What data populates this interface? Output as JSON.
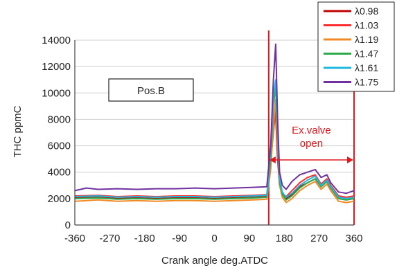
{
  "chart_data": {
    "type": "line",
    "title": "",
    "xlabel": "Crank angle deg.ATDC",
    "ylabel": "THC ppmC",
    "xlim": [
      -360,
      360
    ],
    "ylim": [
      0,
      14000
    ],
    "x_ticks": [
      -360,
      -270,
      -180,
      -90,
      0,
      90,
      180,
      270,
      360
    ],
    "y_ticks": [
      0,
      2000,
      4000,
      6000,
      8000,
      10000,
      12000,
      14000
    ],
    "grid": "horizontal",
    "legend_position": "top-right",
    "annotations": {
      "box_label": "Pos.B",
      "exvalve_label_line1": "Ex.valve",
      "exvalve_label_line2": "open",
      "exvalve_open_start": 140,
      "exvalve_open_end": 360,
      "annotation_color": "#e0191f"
    },
    "series": [
      {
        "name": "λ0.98",
        "color": "#c00000",
        "x": [
          -360,
          -300,
          -250,
          -200,
          -150,
          -100,
          -50,
          0,
          50,
          100,
          135,
          145,
          152,
          158,
          163,
          168,
          175,
          185,
          200,
          220,
          240,
          260,
          275,
          290,
          300,
          320,
          340,
          360
        ],
        "y": [
          2050,
          2100,
          2000,
          2050,
          2000,
          2050,
          2050,
          2000,
          2050,
          2100,
          2150,
          4500,
          7800,
          8300,
          5000,
          3000,
          2300,
          2000,
          2300,
          2900,
          3200,
          3500,
          2900,
          3300,
          2800,
          2000,
          1900,
          2000
        ]
      },
      {
        "name": "λ1.03",
        "color": "#ff2d2d",
        "x": [
          -360,
          -300,
          -250,
          -200,
          -150,
          -100,
          -50,
          0,
          50,
          100,
          135,
          145,
          152,
          158,
          163,
          168,
          175,
          185,
          200,
          220,
          240,
          260,
          275,
          290,
          300,
          320,
          340,
          360
        ],
        "y": [
          2200,
          2250,
          2150,
          2200,
          2150,
          2200,
          2200,
          2150,
          2200,
          2250,
          2300,
          4800,
          7000,
          8800,
          5400,
          3100,
          2400,
          2150,
          2600,
          3200,
          3600,
          3800,
          3100,
          3500,
          3000,
          2200,
          2100,
          2200
        ]
      },
      {
        "name": "λ1.19",
        "color": "#f28a24",
        "x": [
          -360,
          -300,
          -250,
          -200,
          -150,
          -100,
          -50,
          0,
          50,
          100,
          135,
          145,
          152,
          158,
          163,
          168,
          175,
          185,
          200,
          220,
          240,
          260,
          275,
          290,
          300,
          320,
          340,
          360
        ],
        "y": [
          1800,
          1900,
          1800,
          1850,
          1800,
          1850,
          1850,
          1800,
          1850,
          1900,
          1950,
          4200,
          7500,
          9500,
          6000,
          3000,
          2100,
          1700,
          2000,
          2600,
          3000,
          3300,
          2700,
          3100,
          2600,
          1800,
          1700,
          1800
        ]
      },
      {
        "name": "λ1.47",
        "color": "#2eaa4a",
        "x": [
          -360,
          -300,
          -250,
          -200,
          -150,
          -100,
          -50,
          0,
          50,
          100,
          135,
          145,
          152,
          158,
          163,
          168,
          175,
          185,
          200,
          220,
          240,
          260,
          275,
          290,
          300,
          320,
          340,
          360
        ],
        "y": [
          2000,
          2050,
          1950,
          2000,
          1950,
          2000,
          2000,
          1950,
          2000,
          2050,
          2100,
          5000,
          9000,
          10500,
          6500,
          3300,
          2300,
          1900,
          2200,
          2800,
          3200,
          3500,
          2900,
          3300,
          2800,
          2000,
          1900,
          2000
        ]
      },
      {
        "name": "λ1.61",
        "color": "#1fb8e0",
        "x": [
          -360,
          -300,
          -250,
          -200,
          -150,
          -100,
          -50,
          0,
          50,
          100,
          135,
          145,
          152,
          158,
          163,
          168,
          175,
          185,
          200,
          220,
          240,
          260,
          275,
          290,
          300,
          320,
          340,
          360
        ],
        "y": [
          2150,
          2200,
          2100,
          2150,
          2100,
          2150,
          2150,
          2100,
          2150,
          2200,
          2250,
          5500,
          9800,
          11000,
          7000,
          3500,
          2500,
          2100,
          2400,
          3000,
          3400,
          3700,
          3000,
          3400,
          2900,
          2100,
          2000,
          2100
        ]
      },
      {
        "name": "λ1.75",
        "color": "#7030a0",
        "x": [
          -360,
          -330,
          -300,
          -250,
          -200,
          -150,
          -100,
          -50,
          0,
          50,
          100,
          135,
          145,
          152,
          158,
          163,
          168,
          175,
          185,
          200,
          220,
          240,
          260,
          275,
          290,
          300,
          320,
          340,
          360
        ],
        "y": [
          2600,
          2800,
          2700,
          2750,
          2700,
          2750,
          2750,
          2800,
          2750,
          2800,
          2850,
          2900,
          6000,
          11000,
          13700,
          8000,
          4000,
          3000,
          2700,
          3300,
          3800,
          4000,
          4200,
          3600,
          3800,
          3200,
          2500,
          2400,
          2600
        ]
      }
    ]
  }
}
